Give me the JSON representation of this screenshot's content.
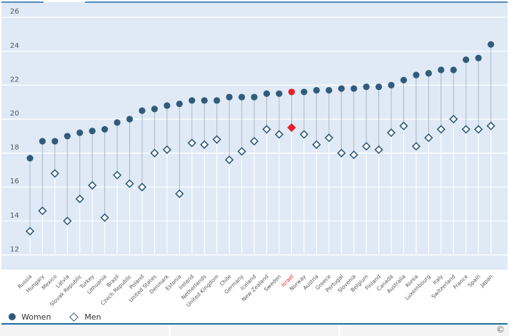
{
  "chart_data": {
    "type": "scatter",
    "subtype": "dot-plot",
    "title": "",
    "xlabel": "",
    "ylabel": "",
    "ylim": [
      11.5,
      26.3
    ],
    "yticks": [
      12,
      14,
      16,
      18,
      20,
      22,
      24,
      26
    ],
    "grid": true,
    "legend_position": "bottom-left",
    "highlight": "Israel",
    "categories": [
      "Russia",
      "Hungary",
      "Mexico",
      "Latvia",
      "Slovak Republic",
      "Turkey",
      "Lithuania",
      "Brazil",
      "Czech Republic",
      "Poland",
      "United States",
      "Denmark",
      "Estonia",
      "Ireland",
      "Netherlands",
      "United Kingdom",
      "Chile",
      "Germany",
      "Iceland",
      "New Zealand",
      "Sweden",
      "Israel",
      "Norway",
      "Austria",
      "Greece",
      "Portugal",
      "Slovenia",
      "Belgium",
      "Finland",
      "Canada",
      "Australia",
      "Korea",
      "Luxembourg",
      "Italy",
      "Switzerland",
      "France",
      "Spain",
      "Japan"
    ],
    "series": [
      {
        "name": "Women",
        "marker": "circle",
        "values": [
          17.7,
          18.7,
          18.7,
          19.0,
          19.2,
          19.3,
          19.4,
          19.8,
          20.0,
          20.5,
          20.6,
          20.8,
          20.9,
          21.1,
          21.1,
          21.1,
          21.3,
          21.3,
          21.3,
          21.5,
          21.5,
          21.6,
          21.6,
          21.7,
          21.7,
          21.8,
          21.8,
          21.9,
          21.9,
          22.0,
          22.3,
          22.6,
          22.7,
          22.9,
          22.9,
          23.5,
          23.6,
          24.4
        ]
      },
      {
        "name": "Men",
        "marker": "diamond",
        "values": [
          13.4,
          14.6,
          16.8,
          14.0,
          15.3,
          16.1,
          14.2,
          16.7,
          16.2,
          16.0,
          18.0,
          18.2,
          15.6,
          18.6,
          18.5,
          18.8,
          17.6,
          18.1,
          18.7,
          19.4,
          19.1,
          19.5,
          19.1,
          18.5,
          18.9,
          18.0,
          17.9,
          18.4,
          18.2,
          19.2,
          19.6,
          18.4,
          18.9,
          19.4,
          20.0,
          19.4,
          19.4,
          19.6
        ]
      }
    ]
  },
  "legend": {
    "women_label": "Women",
    "men_label": "Men"
  },
  "footer": {
    "copyright": "©"
  },
  "colors": {
    "series": "#325a7a",
    "highlight": "#e8202a",
    "plot_bg": "#dfeaf6",
    "grid": "#ffffff",
    "connector": "#a9b6c4",
    "rule": "#1f6aa5"
  }
}
